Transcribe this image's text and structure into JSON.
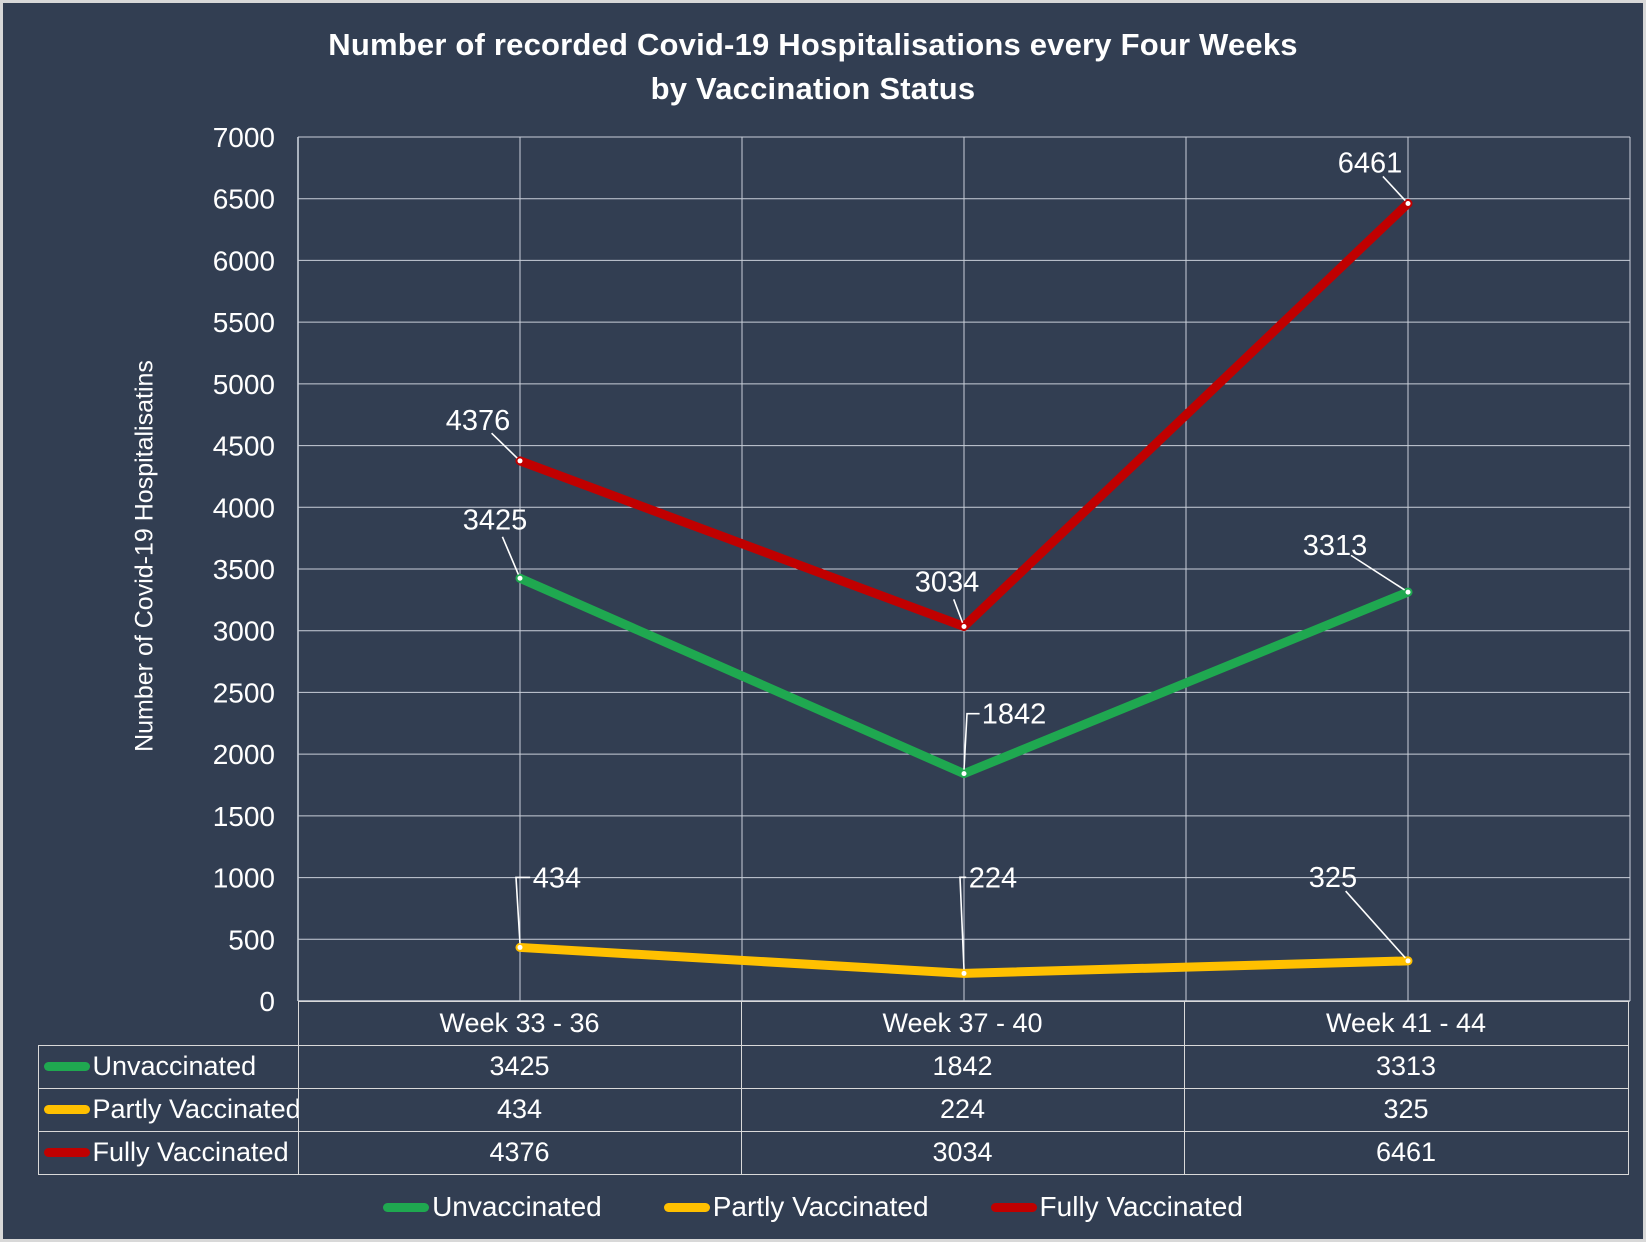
{
  "title": {
    "line1": "Number of recorded Covid-19 Hospitalisations every Four Weeks",
    "line2": "by Vaccination Status"
  },
  "colors": {
    "background": "#323E52",
    "frame": "#D8D8D8",
    "gridline": "#C9CFD9",
    "table_border": "#D9D9D9",
    "text": "#FFFFFF",
    "unvaccinated": "#1FA850",
    "partly_vaccinated": "#FFC000",
    "fully_vaccinated": "#C00000"
  },
  "chart_data": {
    "type": "line",
    "title": "Number of recorded Covid-19 Hospitalisations every Four Weeks by Vaccination Status",
    "categories": [
      "Week 33 - 36",
      "Week 37 - 40",
      "Week 41 - 44"
    ],
    "series": [
      {
        "name": "Unvaccinated",
        "color": "#1FA850",
        "values": [
          3425,
          1842,
          3313
        ]
      },
      {
        "name": "Partly Vaccinated",
        "color": "#FFC000",
        "values": [
          434,
          224,
          325
        ]
      },
      {
        "name": "Fully Vaccinated",
        "color": "#C00000",
        "values": [
          4376,
          3034,
          6461
        ]
      }
    ],
    "xlabel": "",
    "ylabel": "Number of Covid-19 Hospitalisatins",
    "ylim": [
      0,
      7000
    ],
    "ytick_step": 500,
    "grid": true,
    "data_labels": true,
    "legend_position": "bottom",
    "data_table": true
  }
}
